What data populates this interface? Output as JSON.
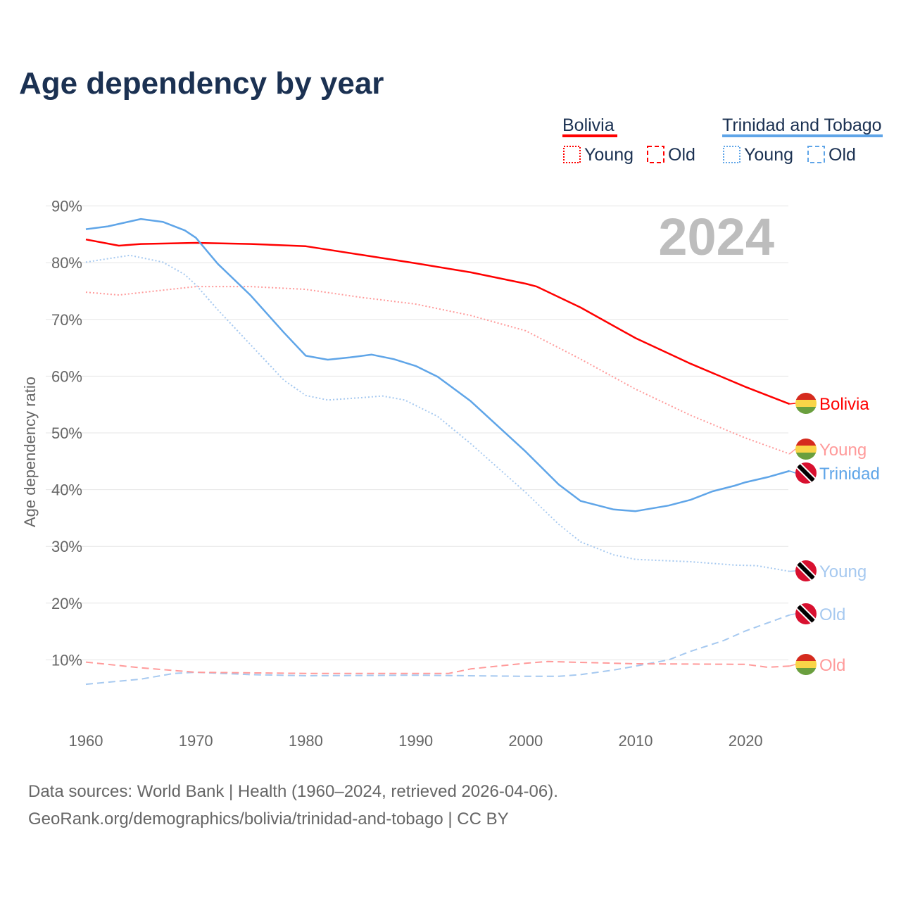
{
  "chart_data": {
    "type": "line",
    "title": "Age dependency by year",
    "xlabel": "",
    "ylabel": "Age dependency ratio",
    "xlim": [
      1960,
      2024
    ],
    "ylim": [
      0,
      90
    ],
    "x_ticks": [
      "1960",
      "1970",
      "1980",
      "1990",
      "2000",
      "2010",
      "2020"
    ],
    "y_ticks": [
      "10%",
      "20%",
      "30%",
      "40%",
      "50%",
      "60%",
      "70%",
      "80%",
      "90%"
    ],
    "grid": true,
    "year_label": "2024",
    "legend": {
      "placement": "top-right",
      "groups": [
        {
          "name": "Bolivia",
          "color": "#ff0000",
          "items": [
            "Young",
            "Old"
          ]
        },
        {
          "name": "Trinidad and Tobago",
          "color": "#5fa5e8",
          "items": [
            "Young",
            "Old"
          ]
        }
      ]
    },
    "series": [
      {
        "name": "Bolivia",
        "end_label": "Bolivia",
        "flag": "bolivia",
        "color": "#ff0000",
        "dash": "solid",
        "points": [
          [
            1960,
            84.1
          ],
          [
            1963,
            83.0
          ],
          [
            1965,
            83.3
          ],
          [
            1970,
            83.5
          ],
          [
            1975,
            83.3
          ],
          [
            1980,
            82.9
          ],
          [
            1985,
            81.4
          ],
          [
            1990,
            79.9
          ],
          [
            1995,
            78.3
          ],
          [
            2000,
            76.3
          ],
          [
            2001,
            75.8
          ],
          [
            2005,
            72.1
          ],
          [
            2010,
            66.7
          ],
          [
            2015,
            62.2
          ],
          [
            2020,
            58.1
          ],
          [
            2024,
            55.1
          ]
        ]
      },
      {
        "name": "Bolivia Young",
        "end_label": "Young",
        "flag": "bolivia",
        "color": "#ff9a9a",
        "dash": "dotted",
        "points": [
          [
            1960,
            74.8
          ],
          [
            1963,
            74.3
          ],
          [
            1970,
            75.8
          ],
          [
            1975,
            75.8
          ],
          [
            1980,
            75.3
          ],
          [
            1985,
            73.9
          ],
          [
            1990,
            72.7
          ],
          [
            1995,
            70.7
          ],
          [
            2000,
            68.0
          ],
          [
            2005,
            63.0
          ],
          [
            2010,
            57.7
          ],
          [
            2015,
            53.1
          ],
          [
            2020,
            49.1
          ],
          [
            2024,
            46.3
          ]
        ]
      },
      {
        "name": "Trinidad and Tobago",
        "end_label": "Trinidad",
        "flag": "trinidad",
        "color": "#5fa5e8",
        "dash": "solid",
        "points": [
          [
            1960,
            85.9
          ],
          [
            1962,
            86.4
          ],
          [
            1965,
            87.7
          ],
          [
            1967,
            87.2
          ],
          [
            1969,
            85.7
          ],
          [
            1970,
            84.4
          ],
          [
            1972,
            79.8
          ],
          [
            1975,
            74.2
          ],
          [
            1978,
            67.7
          ],
          [
            1980,
            63.6
          ],
          [
            1982,
            62.9
          ],
          [
            1984,
            63.3
          ],
          [
            1986,
            63.8
          ],
          [
            1988,
            63.0
          ],
          [
            1990,
            61.8
          ],
          [
            1992,
            59.9
          ],
          [
            1995,
            55.6
          ],
          [
            2000,
            46.7
          ],
          [
            2003,
            40.9
          ],
          [
            2005,
            38.0
          ],
          [
            2008,
            36.5
          ],
          [
            2010,
            36.2
          ],
          [
            2013,
            37.2
          ],
          [
            2015,
            38.2
          ],
          [
            2017,
            39.7
          ],
          [
            2019,
            40.7
          ],
          [
            2020,
            41.3
          ],
          [
            2022,
            42.2
          ],
          [
            2024,
            43.3
          ]
        ]
      },
      {
        "name": "Trinidad and Tobago Young",
        "end_label": "Young",
        "flag": "trinidad",
        "color": "#a6c9f0",
        "dash": "dotted",
        "points": [
          [
            1960,
            80.1
          ],
          [
            1964,
            81.3
          ],
          [
            1967,
            80.1
          ],
          [
            1969,
            77.9
          ],
          [
            1970,
            76.1
          ],
          [
            1972,
            71.7
          ],
          [
            1975,
            65.5
          ],
          [
            1978,
            59.3
          ],
          [
            1980,
            56.6
          ],
          [
            1982,
            55.8
          ],
          [
            1985,
            56.2
          ],
          [
            1987,
            56.5
          ],
          [
            1989,
            55.8
          ],
          [
            1992,
            52.9
          ],
          [
            1995,
            48.1
          ],
          [
            2000,
            39.5
          ],
          [
            2003,
            33.9
          ],
          [
            2005,
            30.8
          ],
          [
            2008,
            28.5
          ],
          [
            2010,
            27.7
          ],
          [
            2015,
            27.3
          ],
          [
            2017,
            27.0
          ],
          [
            2019,
            26.7
          ],
          [
            2021,
            26.6
          ],
          [
            2024,
            25.6
          ]
        ]
      },
      {
        "name": "Trinidad and Tobago Old",
        "end_label": "Old",
        "flag": "trinidad",
        "color": "#a6c9f0",
        "dash": "dashed",
        "points": [
          [
            1960,
            5.7
          ],
          [
            1965,
            6.6
          ],
          [
            1968,
            7.6
          ],
          [
            1970,
            7.8
          ],
          [
            1975,
            7.4
          ],
          [
            1980,
            7.2
          ],
          [
            1990,
            7.3
          ],
          [
            2000,
            7.1
          ],
          [
            2003,
            7.1
          ],
          [
            2005,
            7.4
          ],
          [
            2008,
            8.2
          ],
          [
            2010,
            8.9
          ],
          [
            2013,
            10.0
          ],
          [
            2015,
            11.5
          ],
          [
            2018,
            13.4
          ],
          [
            2020,
            15.1
          ],
          [
            2022,
            16.5
          ],
          [
            2024,
            17.9
          ]
        ]
      },
      {
        "name": "Bolivia Old",
        "end_label": "Old",
        "flag": "bolivia",
        "color": "#ff9a9a",
        "dash": "dashed",
        "points": [
          [
            1960,
            9.6
          ],
          [
            1965,
            8.6
          ],
          [
            1970,
            7.8
          ],
          [
            1980,
            7.6
          ],
          [
            1990,
            7.6
          ],
          [
            1993,
            7.6
          ],
          [
            1995,
            8.4
          ],
          [
            2000,
            9.4
          ],
          [
            2002,
            9.7
          ],
          [
            2010,
            9.3
          ],
          [
            2020,
            9.2
          ],
          [
            2022,
            8.7
          ],
          [
            2024,
            8.9
          ]
        ]
      }
    ]
  },
  "footer": {
    "line1": "Data sources: World Bank | Health (1960–2024, retrieved 2026-04-06).",
    "line2": "GeoRank.org/demographics/bolivia/trinidad-and-tobago | CC BY"
  }
}
